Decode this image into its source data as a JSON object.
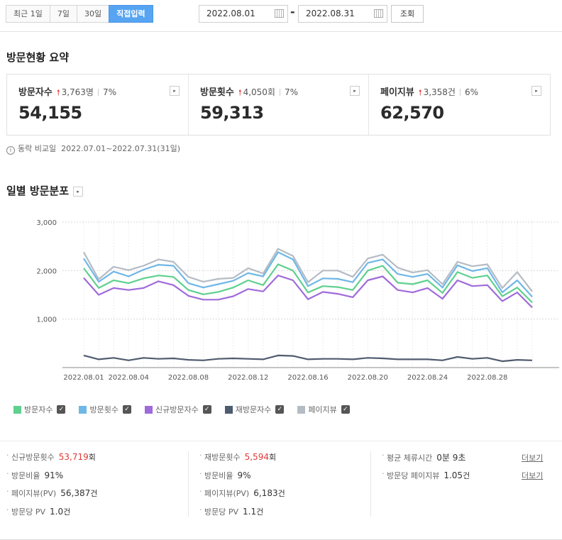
{
  "filter": {
    "tabs": [
      "최근 1일",
      "7일",
      "30일",
      "직접입력"
    ],
    "active_tab": 3,
    "start_date": "2022.08.01",
    "end_date": "2022.08.31",
    "separator": "-",
    "search_label": "조회"
  },
  "summary": {
    "title": "방문현황 요약",
    "cards": [
      {
        "label": "방문자수",
        "delta": "3,763명",
        "pct": "7%",
        "value": "54,155"
      },
      {
        "label": "방문횟수",
        "delta": "4,050회",
        "pct": "7%",
        "value": "59,313"
      },
      {
        "label": "페이지뷰",
        "delta": "3,358건",
        "pct": "6%",
        "value": "62,570"
      }
    ],
    "up_glyph": "🠕",
    "more_glyph": "▸",
    "compare_label": "동락 비교일",
    "compare_period": "2022.07.01~2022.07.31(31일)"
  },
  "daily": {
    "title": "일별 방문분포"
  },
  "chart_data": {
    "type": "line",
    "x": [
      "2022.08.01",
      "2022.08.02",
      "2022.08.03",
      "2022.08.04",
      "2022.08.05",
      "2022.08.06",
      "2022.08.07",
      "2022.08.08",
      "2022.08.09",
      "2022.08.10",
      "2022.08.11",
      "2022.08.12",
      "2022.08.13",
      "2022.08.14",
      "2022.08.15",
      "2022.08.16",
      "2022.08.17",
      "2022.08.18",
      "2022.08.19",
      "2022.08.20",
      "2022.08.21",
      "2022.08.22",
      "2022.08.23",
      "2022.08.24",
      "2022.08.25",
      "2022.08.26",
      "2022.08.27",
      "2022.08.28",
      "2022.08.29",
      "2022.08.30",
      "2022.08.31"
    ],
    "xtick_labels": [
      "2022.08.01",
      "2022.08.04",
      "2022.08.08",
      "2022.08.12",
      "2022.08.16",
      "2022.08.20",
      "2022.08.24",
      "2022.08.28"
    ],
    "yticks": [
      "3,000",
      "2,000",
      "1,000"
    ],
    "ylim": [
      0,
      3000
    ],
    "grid": true,
    "series": [
      {
        "name": "방문자수",
        "color": "#5fd08e",
        "values": [
          2050,
          1640,
          1800,
          1740,
          1840,
          1900,
          1870,
          1600,
          1510,
          1560,
          1650,
          1800,
          1700,
          2130,
          2000,
          1550,
          1680,
          1660,
          1600,
          2000,
          2100,
          1750,
          1720,
          1800,
          1540,
          1970,
          1850,
          1900,
          1470,
          1650,
          1340
        ]
      },
      {
        "name": "방문횟수",
        "color": "#6fb7e6",
        "values": [
          2250,
          1770,
          1980,
          1880,
          2020,
          2120,
          2100,
          1740,
          1650,
          1720,
          1790,
          1950,
          1880,
          2380,
          2230,
          1680,
          1840,
          1830,
          1760,
          2160,
          2230,
          1930,
          1870,
          1930,
          1650,
          2110,
          1990,
          2050,
          1550,
          1800,
          1460
        ]
      },
      {
        "name": "신규방문자수",
        "color": "#9f6bdb",
        "values": [
          1850,
          1500,
          1640,
          1600,
          1640,
          1780,
          1700,
          1480,
          1400,
          1400,
          1470,
          1620,
          1570,
          1900,
          1800,
          1410,
          1560,
          1520,
          1450,
          1800,
          1880,
          1600,
          1550,
          1640,
          1420,
          1800,
          1680,
          1700,
          1370,
          1550,
          1240
        ]
      },
      {
        "name": "재방문자수",
        "color": "#4f5b6e",
        "values": [
          250,
          170,
          200,
          150,
          200,
          180,
          190,
          160,
          150,
          180,
          190,
          180,
          170,
          250,
          240,
          170,
          180,
          180,
          170,
          200,
          190,
          170,
          170,
          170,
          150,
          220,
          180,
          200,
          130,
          160,
          150
        ]
      },
      {
        "name": "페이지뷰",
        "color": "#b5bcc4",
        "values": [
          2380,
          1820,
          2080,
          2010,
          2100,
          2230,
          2180,
          1870,
          1770,
          1830,
          1850,
          2050,
          1940,
          2450,
          2300,
          1760,
          2000,
          2000,
          1870,
          2250,
          2330,
          2060,
          1960,
          2010,
          1720,
          2180,
          2090,
          2130,
          1640,
          1970,
          1570
        ]
      }
    ]
  },
  "legend": {
    "check_glyph": "✓"
  },
  "stats": {
    "col1": [
      {
        "label": "신규방문횟수",
        "value": "53,719",
        "unit": "회",
        "red": true
      },
      {
        "label": "방문비율",
        "value": "91%",
        "unit": ""
      },
      {
        "label": "페이지뷰(PV)",
        "value": "56,387",
        "unit": "건"
      },
      {
        "label": "방문당 PV",
        "value": "1.0",
        "unit": "건"
      }
    ],
    "col2": [
      {
        "label": "재방문횟수",
        "value": "5,594",
        "unit": "회",
        "red": true
      },
      {
        "label": "방문비율",
        "value": "9%",
        "unit": ""
      },
      {
        "label": "페이지뷰(PV)",
        "value": "6,183",
        "unit": "건"
      },
      {
        "label": "방문당 PV",
        "value": "1.1",
        "unit": "건"
      }
    ],
    "col3": [
      {
        "label": "평균 체류시간",
        "value": "0분 9초",
        "unit": ""
      },
      {
        "label": "방문당 페이지뷰",
        "value": "1.05",
        "unit": "건"
      }
    ],
    "more_label": "더보기"
  }
}
